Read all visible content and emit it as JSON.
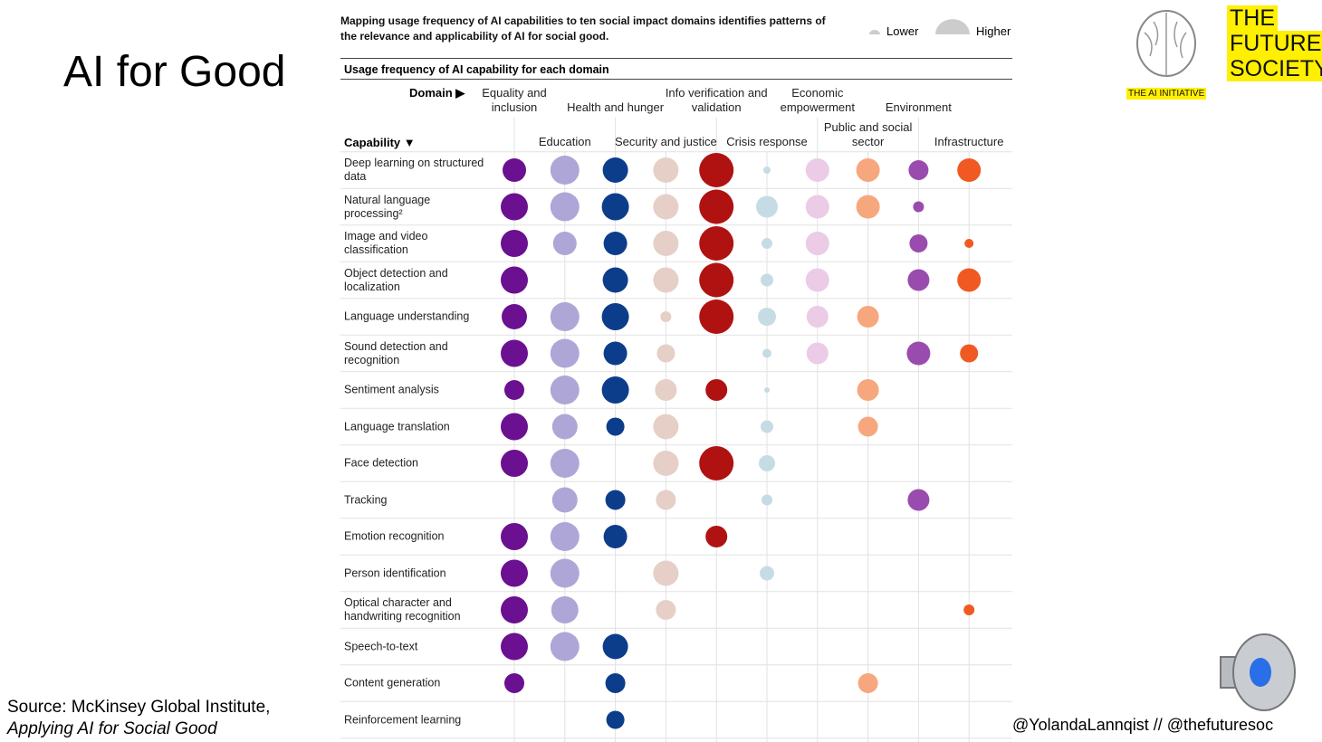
{
  "slide_title": "AI for Good",
  "source": {
    "line1": "Source: McKinsey Global Institute,",
    "line2": "Applying AI for Social Good"
  },
  "handle": "@YolandaLannqist // @thefuturesoc",
  "logos": {
    "ai_initiative": "THE AI INITIATIVE",
    "future_society": [
      "THE",
      "FUTURE",
      "SOCIETY"
    ]
  },
  "chart_data": {
    "type": "bubble-matrix",
    "title": "Mapping usage frequency of AI capabilities to ten social impact domains identifies patterns of the relevance and applicability of AI for social good.",
    "legend": {
      "lower": "Lower",
      "higher": "Higher"
    },
    "subtitle": "Usage frequency of AI capability for each domain",
    "domain_label": "Domain",
    "capability_label": "Capability",
    "categories": [
      "Deep learning on structured data",
      "Natural language processing²",
      "Image and video classification",
      "Object detection and localization",
      "Language understanding",
      "Sound detection and recognition",
      "Sentiment analysis",
      "Language translation",
      "Face detection",
      "Tracking",
      "Emotion recognition",
      "Person identification",
      "Optical character and handwriting recognition",
      "Speech-to-text",
      "Content generation",
      "Reinforcement learning"
    ],
    "series": [
      {
        "name": "Equality and inclusion",
        "color": "#6a1090",
        "values": [
          13,
          15,
          15,
          15,
          14,
          15,
          11,
          15,
          15,
          null,
          15,
          15,
          15,
          15,
          11,
          null
        ]
      },
      {
        "name": "Education",
        "color": "#aea6d6",
        "values": [
          16,
          16,
          13,
          null,
          16,
          16,
          16,
          14,
          16,
          14,
          16,
          16,
          15,
          16,
          null,
          null
        ]
      },
      {
        "name": "Health and hunger",
        "color": "#0c3d8a",
        "values": [
          14,
          15,
          13,
          14,
          15,
          13,
          15,
          10,
          null,
          11,
          13,
          null,
          null,
          14,
          11,
          10
        ]
      },
      {
        "name": "Security and justice",
        "color": "#e6cfc6",
        "values": [
          14,
          14,
          14,
          14,
          6,
          10,
          12,
          14,
          14,
          11,
          null,
          14,
          11,
          null,
          null,
          null
        ]
      },
      {
        "name": "Info verification and validation",
        "color": "#b01212",
        "values": [
          19,
          19,
          19,
          19,
          19,
          null,
          12,
          null,
          19,
          null,
          12,
          null,
          null,
          null,
          null,
          null
        ]
      },
      {
        "name": "Crisis response",
        "color": "#c6dce4",
        "values": [
          4,
          12,
          6,
          7,
          10,
          5,
          3,
          7,
          9,
          6,
          null,
          8,
          null,
          null,
          null,
          null
        ]
      },
      {
        "name": "Economic empowerment",
        "color": "#ebcbe6",
        "values": [
          13,
          13,
          13,
          13,
          12,
          12,
          null,
          null,
          null,
          null,
          null,
          null,
          null,
          null,
          null,
          null
        ]
      },
      {
        "name": "Public and social sector",
        "color": "#f7a77d",
        "values": [
          13,
          13,
          null,
          null,
          12,
          null,
          12,
          11,
          null,
          null,
          null,
          null,
          null,
          null,
          11,
          null
        ]
      },
      {
        "name": "Environment",
        "color": "#9a4cae",
        "values": [
          11,
          6,
          10,
          12,
          null,
          13,
          null,
          null,
          null,
          12,
          null,
          null,
          null,
          null,
          null,
          null
        ]
      },
      {
        "name": "Infrastructure",
        "color": "#f05a22",
        "values": [
          13,
          null,
          5,
          13,
          null,
          10,
          null,
          null,
          null,
          null,
          null,
          null,
          6,
          null,
          null,
          null
        ]
      }
    ]
  }
}
